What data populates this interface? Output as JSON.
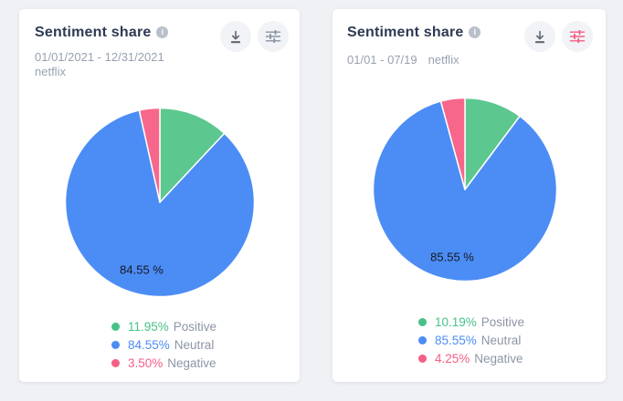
{
  "page": {
    "background": "#eff1f5"
  },
  "icons": {
    "info_glyph": "i"
  },
  "cards": [
    {
      "title": "Sentiment share",
      "date_range": "01/01/2021 - 12/31/2021",
      "keyword": "netflix",
      "pie_label": "84.55 %",
      "download_icon_color": "#5f6771",
      "filter_icon_color": "#8a93a1",
      "legend": [
        {
          "pct": "11.95%",
          "label": "Positive",
          "color": "#47c287"
        },
        {
          "pct": "84.55%",
          "label": "Neutral",
          "color": "#4c8df5"
        },
        {
          "pct": "3.50%",
          "label": "Negative",
          "color": "#f55f85"
        }
      ]
    },
    {
      "title": "Sentiment share",
      "date_range": "01/01 - 07/19",
      "keyword": "netflix",
      "pie_label": "85.55 %",
      "download_icon_color": "#5f6771",
      "filter_icon_color": "#f65c83",
      "legend": [
        {
          "pct": "10.19%",
          "label": "Positive",
          "color": "#47c287"
        },
        {
          "pct": "85.55%",
          "label": "Neutral",
          "color": "#4c8df5"
        },
        {
          "pct": "4.25%",
          "label": "Negative",
          "color": "#f55f85"
        }
      ]
    }
  ],
  "chart_data": [
    {
      "type": "pie",
      "title": "Sentiment share",
      "subtitle": "01/01/2021 - 12/31/2021 netflix",
      "labels": [
        "Positive",
        "Neutral",
        "Negative"
      ],
      "values": [
        11.95,
        84.55,
        3.5
      ],
      "colors": [
        "#5cc78e",
        "#4c8df5",
        "#f7678b"
      ],
      "start_angle_deg": 0,
      "direction": "clockwise",
      "inner_label": "84.55 %",
      "legend_position": "bottom"
    },
    {
      "type": "pie",
      "title": "Sentiment share",
      "subtitle": "01/01 - 07/19 netflix",
      "labels": [
        "Positive",
        "Neutral",
        "Negative"
      ],
      "values": [
        10.19,
        85.55,
        4.25
      ],
      "colors": [
        "#5cc78e",
        "#4c8df5",
        "#f7678b"
      ],
      "start_angle_deg": 0,
      "direction": "clockwise",
      "inner_label": "85.55 %",
      "legend_position": "bottom"
    }
  ]
}
